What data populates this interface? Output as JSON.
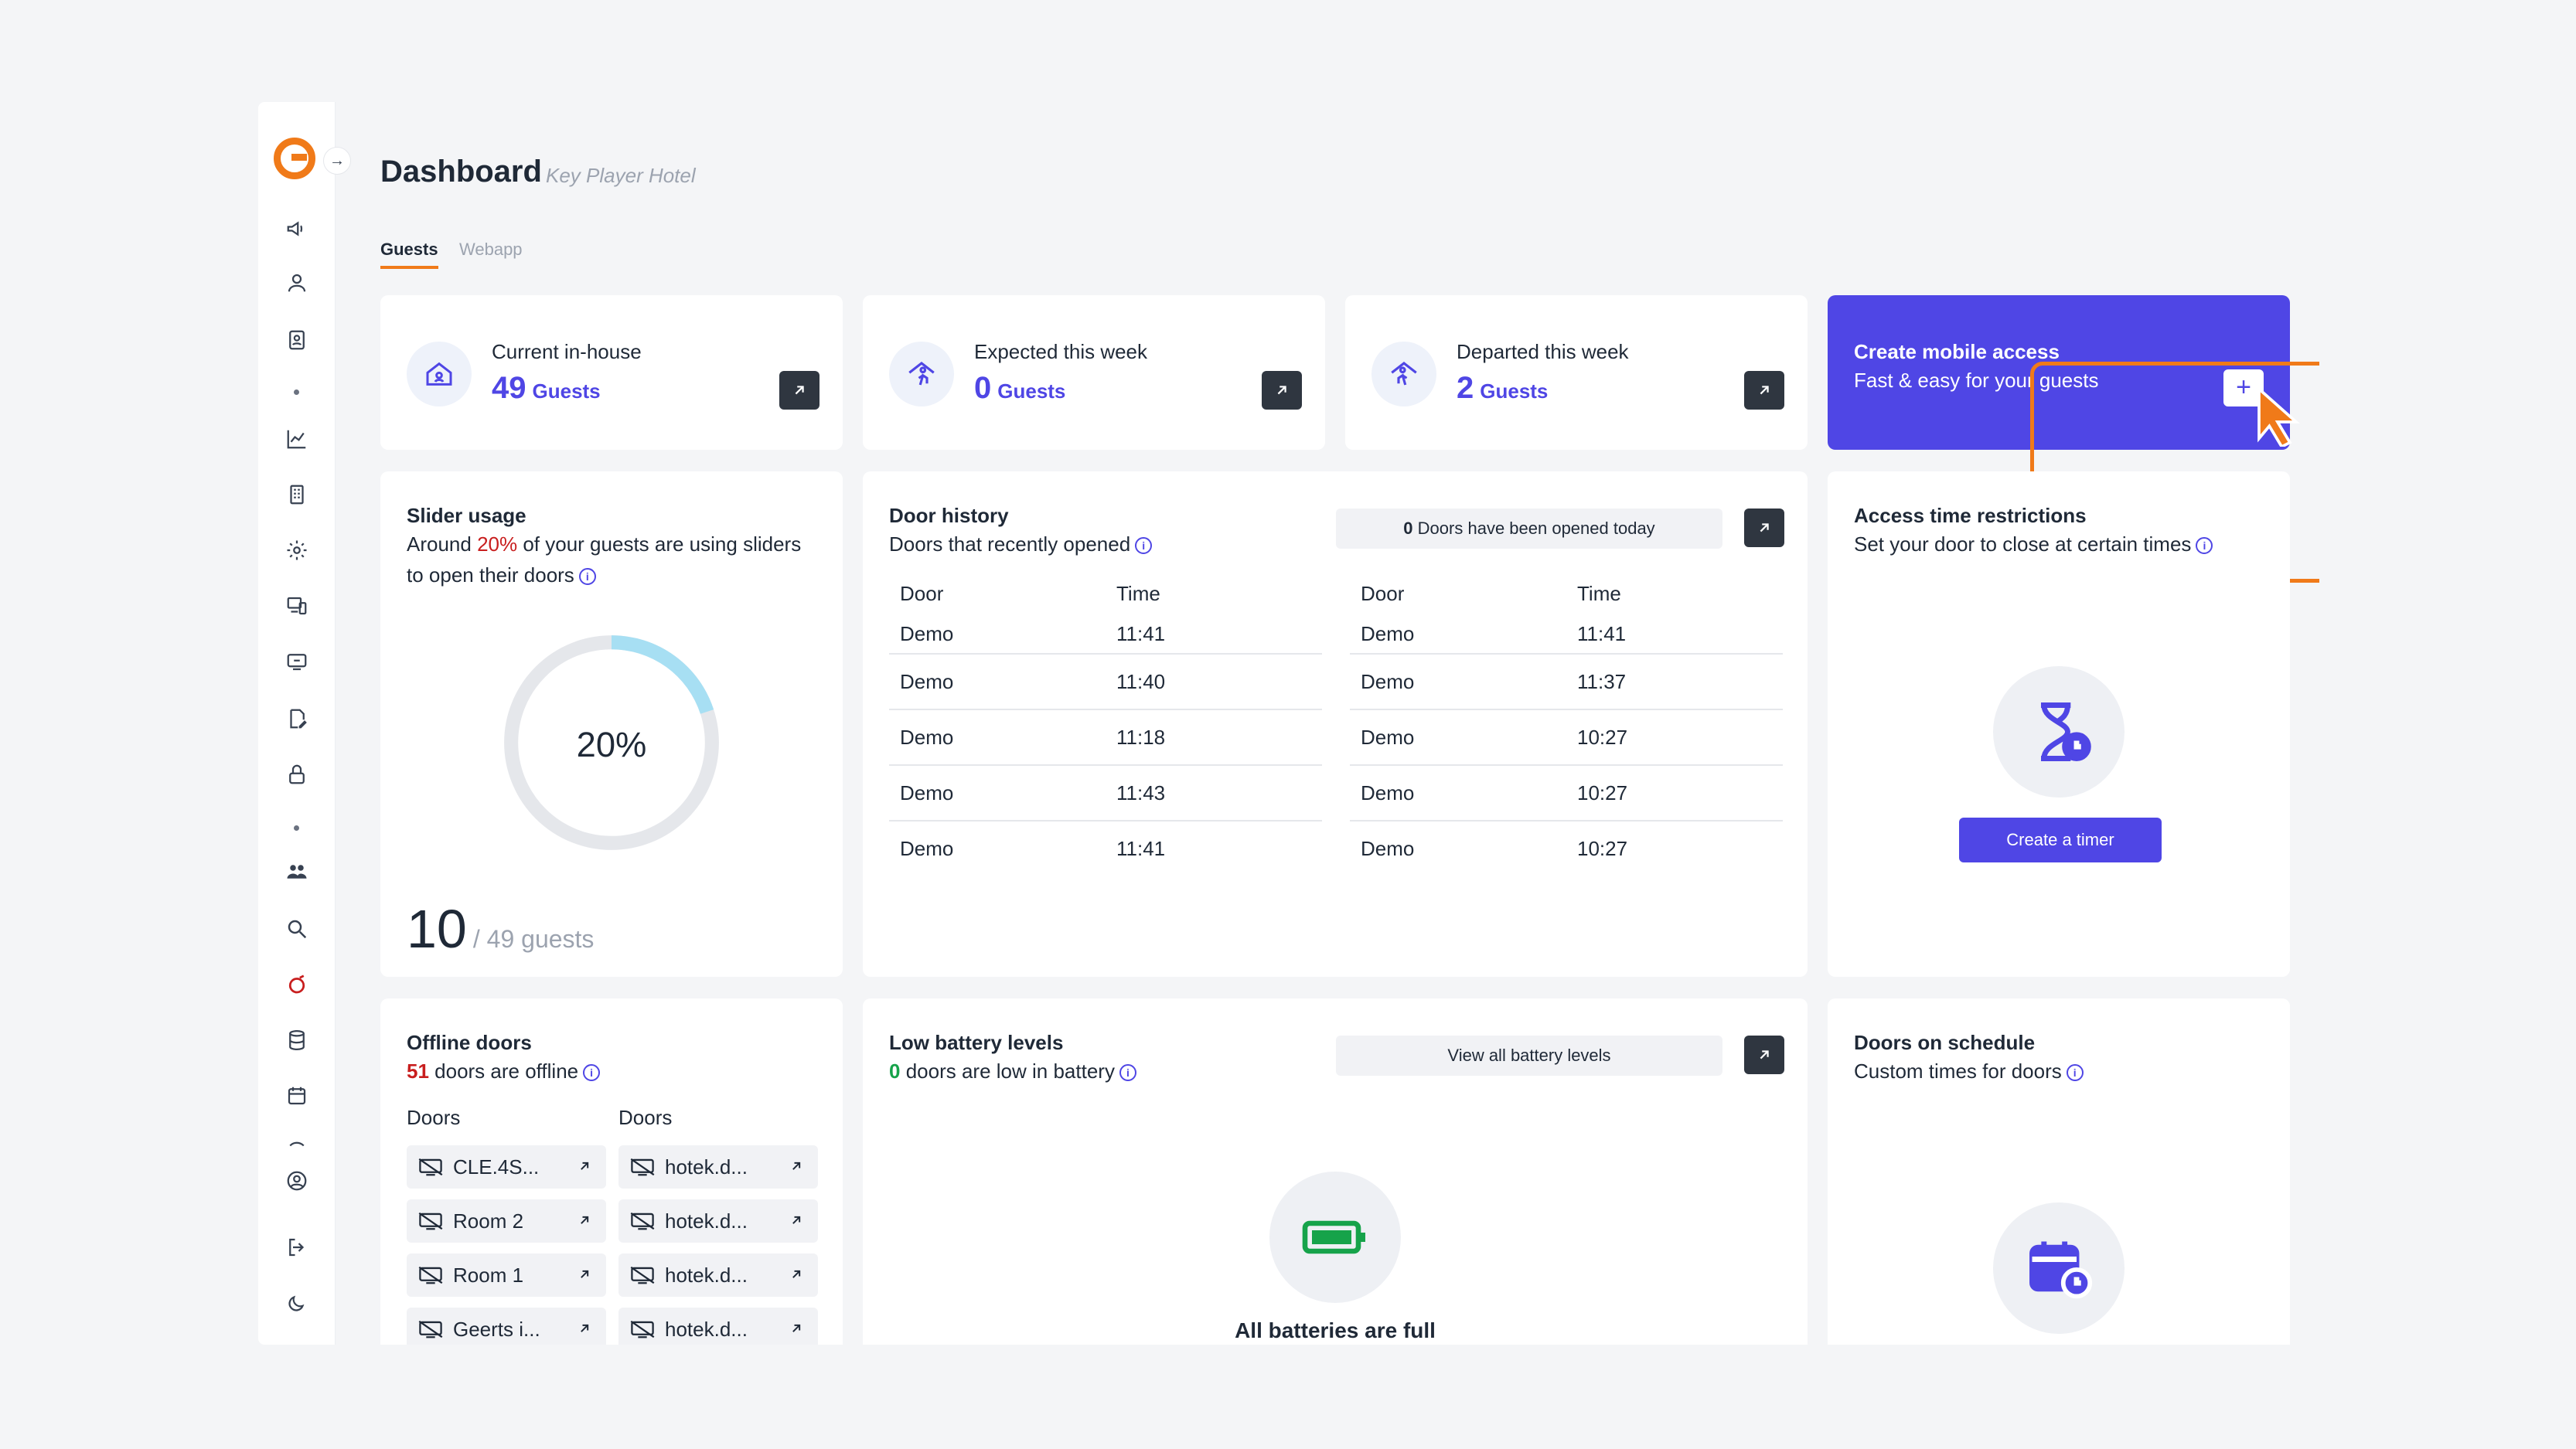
{
  "header": {
    "title": "Dashboard",
    "subtitle": "Key Player Hotel"
  },
  "tabs": [
    {
      "label": "Guests",
      "active": true
    },
    {
      "label": "Webapp",
      "active": false
    }
  ],
  "stats": [
    {
      "label": "Current in-house",
      "value": "49",
      "unit": "Guests"
    },
    {
      "label": "Expected this week",
      "value": "0",
      "unit": "Guests"
    },
    {
      "label": "Departed this week",
      "value": "2",
      "unit": "Guests"
    }
  ],
  "create_access": {
    "title": "Create mobile access",
    "subtitle": "Fast & easy for your guests"
  },
  "slider": {
    "title": "Slider usage",
    "text_before": "Around ",
    "percent_text": "20%",
    "text_after": " of your guests are using sliders",
    "text_line2": "to open their doors",
    "percent": 20,
    "donut_label": "20%",
    "count": "10",
    "total": "/ 49 guests"
  },
  "door_history": {
    "title": "Door history",
    "subtitle": "Doors that recently opened",
    "opened_count": "0",
    "opened_text": "Doors have been opened today",
    "col_door": "Door",
    "col_time": "Time",
    "left": [
      {
        "door": "Demo",
        "time": "11:41"
      },
      {
        "door": "Demo",
        "time": "11:40"
      },
      {
        "door": "Demo",
        "time": "11:18"
      },
      {
        "door": "Demo",
        "time": "11:43"
      },
      {
        "door": "Demo",
        "time": "11:41"
      }
    ],
    "right": [
      {
        "door": "Demo",
        "time": "11:41"
      },
      {
        "door": "Demo",
        "time": "11:37"
      },
      {
        "door": "Demo",
        "time": "10:27"
      },
      {
        "door": "Demo",
        "time": "10:27"
      },
      {
        "door": "Demo",
        "time": "10:27"
      }
    ]
  },
  "access_time": {
    "title": "Access time restrictions",
    "subtitle": "Set your door to close at certain times",
    "button": "Create a timer"
  },
  "offline": {
    "title": "Offline doors",
    "count": "51",
    "text": " doors are offline",
    "col1": "Doors",
    "col2": "Doors",
    "items_left": [
      "CLE.4S...",
      "Room 2",
      "Room 1",
      "Geerts i..."
    ],
    "items_right": [
      "hotek.d...",
      "hotek.d...",
      "hotek.d...",
      "hotek.d..."
    ]
  },
  "battery": {
    "title": "Low battery levels",
    "count": "0",
    "text": " doors are low in battery",
    "view_all": "View all battery levels",
    "status": "All batteries are full"
  },
  "schedule": {
    "title": "Doors on schedule",
    "subtitle": "Custom times for doors"
  },
  "colors": {
    "accent": "#4f46e5",
    "brand": "#f07a19",
    "alert": "#c81e1e",
    "ok": "#16a34a"
  }
}
